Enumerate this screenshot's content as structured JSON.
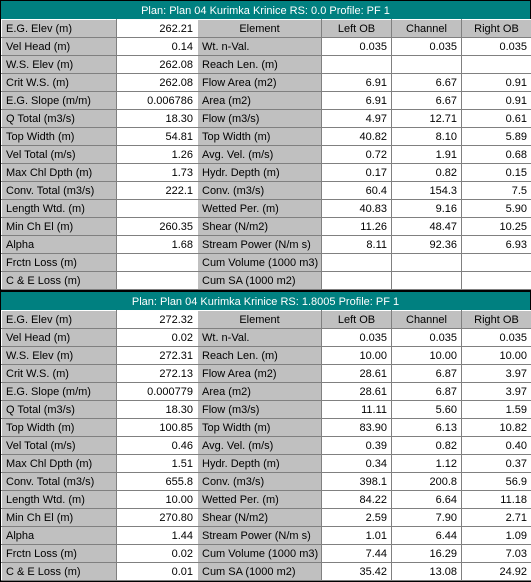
{
  "panels": [
    {
      "title": "Plan: Plan 04    Kurimka    Krinice  RS: 0.0    Profile: PF 1",
      "left": [
        {
          "label": "E.G. Elev (m)",
          "value": "262.21"
        },
        {
          "label": "Vel Head (m)",
          "value": "0.14"
        },
        {
          "label": "W.S. Elev (m)",
          "value": "262.08"
        },
        {
          "label": "Crit W.S. (m)",
          "value": "262.08"
        },
        {
          "label": "E.G. Slope (m/m)",
          "value": "0.006786"
        },
        {
          "label": "Q Total (m3/s)",
          "value": "18.30"
        },
        {
          "label": "Top Width (m)",
          "value": "54.81"
        },
        {
          "label": "Vel Total (m/s)",
          "value": "1.26"
        },
        {
          "label": "Max Chl Dpth (m)",
          "value": "1.73"
        },
        {
          "label": "Conv. Total (m3/s)",
          "value": "222.1"
        },
        {
          "label": "Length Wtd. (m)",
          "value": ""
        },
        {
          "label": "Min Ch El (m)",
          "value": "260.35"
        },
        {
          "label": "Alpha",
          "value": "1.68"
        },
        {
          "label": "Frctn Loss (m)",
          "value": ""
        },
        {
          "label": "C & E Loss (m)",
          "value": ""
        }
      ],
      "right": {
        "head": [
          "Element",
          "Left OB",
          "Channel",
          "Right OB"
        ],
        "rows": [
          {
            "label": "Wt. n-Val.",
            "l": "0.035",
            "c": "0.035",
            "r": "0.035"
          },
          {
            "label": "Reach Len. (m)",
            "l": "",
            "c": "",
            "r": ""
          },
          {
            "label": "Flow Area (m2)",
            "l": "6.91",
            "c": "6.67",
            "r": "0.91"
          },
          {
            "label": "Area (m2)",
            "l": "6.91",
            "c": "6.67",
            "r": "0.91"
          },
          {
            "label": "Flow (m3/s)",
            "l": "4.97",
            "c": "12.71",
            "r": "0.61"
          },
          {
            "label": "Top Width (m)",
            "l": "40.82",
            "c": "8.10",
            "r": "5.89"
          },
          {
            "label": "Avg. Vel. (m/s)",
            "l": "0.72",
            "c": "1.91",
            "r": "0.68"
          },
          {
            "label": "Hydr. Depth (m)",
            "l": "0.17",
            "c": "0.82",
            "r": "0.15"
          },
          {
            "label": "Conv. (m3/s)",
            "l": "60.4",
            "c": "154.3",
            "r": "7.5"
          },
          {
            "label": "Wetted Per. (m)",
            "l": "40.83",
            "c": "9.16",
            "r": "5.90"
          },
          {
            "label": "Shear (N/m2)",
            "l": "11.26",
            "c": "48.47",
            "r": "10.25"
          },
          {
            "label": "Stream Power (N/m s)",
            "l": "8.11",
            "c": "92.36",
            "r": "6.93"
          },
          {
            "label": "Cum Volume (1000 m3)",
            "l": "",
            "c": "",
            "r": ""
          },
          {
            "label": "Cum SA (1000 m2)",
            "l": "",
            "c": "",
            "r": ""
          }
        ]
      }
    },
    {
      "title": "Plan: Plan 04    Kurimka    Krinice  RS: 1.8005    Profile: PF 1",
      "left": [
        {
          "label": "E.G. Elev (m)",
          "value": "272.32"
        },
        {
          "label": "Vel Head (m)",
          "value": "0.02"
        },
        {
          "label": "W.S. Elev (m)",
          "value": "272.31"
        },
        {
          "label": "Crit W.S. (m)",
          "value": "272.13"
        },
        {
          "label": "E.G. Slope (m/m)",
          "value": "0.000779"
        },
        {
          "label": "Q Total (m3/s)",
          "value": "18.30"
        },
        {
          "label": "Top Width (m)",
          "value": "100.85"
        },
        {
          "label": "Vel Total (m/s)",
          "value": "0.46"
        },
        {
          "label": "Max Chl Dpth (m)",
          "value": "1.51"
        },
        {
          "label": "Conv. Total (m3/s)",
          "value": "655.8"
        },
        {
          "label": "Length Wtd. (m)",
          "value": "10.00"
        },
        {
          "label": "Min Ch El (m)",
          "value": "270.80"
        },
        {
          "label": "Alpha",
          "value": "1.44"
        },
        {
          "label": "Frctn Loss (m)",
          "value": "0.02"
        },
        {
          "label": "C & E Loss (m)",
          "value": "0.01"
        }
      ],
      "right": {
        "head": [
          "Element",
          "Left OB",
          "Channel",
          "Right OB"
        ],
        "rows": [
          {
            "label": "Wt. n-Val.",
            "l": "0.035",
            "c": "0.035",
            "r": "0.035"
          },
          {
            "label": "Reach Len. (m)",
            "l": "10.00",
            "c": "10.00",
            "r": "10.00"
          },
          {
            "label": "Flow Area (m2)",
            "l": "28.61",
            "c": "6.87",
            "r": "3.97"
          },
          {
            "label": "Area (m2)",
            "l": "28.61",
            "c": "6.87",
            "r": "3.97"
          },
          {
            "label": "Flow (m3/s)",
            "l": "11.11",
            "c": "5.60",
            "r": "1.59"
          },
          {
            "label": "Top Width (m)",
            "l": "83.90",
            "c": "6.13",
            "r": "10.82"
          },
          {
            "label": "Avg. Vel. (m/s)",
            "l": "0.39",
            "c": "0.82",
            "r": "0.40"
          },
          {
            "label": "Hydr. Depth (m)",
            "l": "0.34",
            "c": "1.12",
            "r": "0.37"
          },
          {
            "label": "Conv. (m3/s)",
            "l": "398.1",
            "c": "200.8",
            "r": "56.9"
          },
          {
            "label": "Wetted Per. (m)",
            "l": "84.22",
            "c": "6.64",
            "r": "11.18"
          },
          {
            "label": "Shear (N/m2)",
            "l": "2.59",
            "c": "7.90",
            "r": "2.71"
          },
          {
            "label": "Stream Power (N/m s)",
            "l": "1.01",
            "c": "6.44",
            "r": "1.09"
          },
          {
            "label": "Cum Volume (1000 m3)",
            "l": "7.44",
            "c": "16.29",
            "r": "7.03"
          },
          {
            "label": "Cum SA (1000 m2)",
            "l": "35.42",
            "c": "13.08",
            "r": "24.92"
          }
        ]
      }
    }
  ]
}
